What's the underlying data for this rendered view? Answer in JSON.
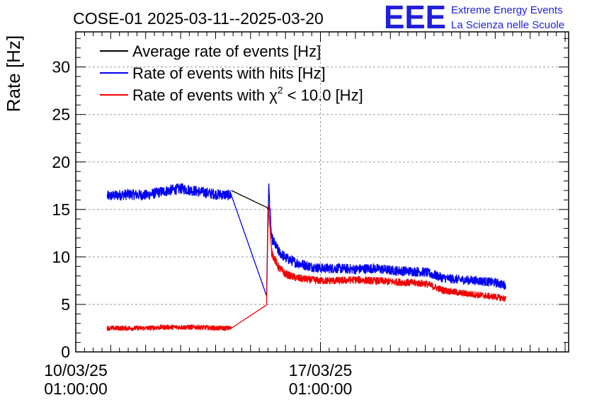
{
  "chart_data": {
    "type": "line",
    "title": "COSE-01 2025-03-11--2025-03-20",
    "ylabel": "Rate [Hz]",
    "xlabel": "",
    "x_unit": "days since 10/03/25 01:00:00",
    "xlim": [
      0,
      14.1
    ],
    "ylim": [
      0,
      33.7
    ],
    "y_ticks": [
      0,
      5,
      10,
      15,
      20,
      25,
      30
    ],
    "x_ticks": [
      {
        "x": 0,
        "date": "10/03/25",
        "time": "01:00:00"
      },
      {
        "x": 7,
        "date": "17/03/25",
        "time": "01:00:00"
      }
    ],
    "grid": true,
    "legend_position": "top-left",
    "series": [
      {
        "name": "Average rate of events [Hz]",
        "legend_main": "Average rate of events [Hz]",
        "color": "#000000",
        "x": [
          4.45,
          5.47,
          5.5
        ],
        "y": [
          17.0,
          15.2,
          15.0
        ]
      },
      {
        "name": "Rate of events with hits [Hz]",
        "legend_main": "Rate of events with hits [Hz]",
        "color": "#0000ee",
        "x": [
          0.9,
          1.5,
          2.0,
          2.5,
          3.0,
          3.5,
          4.0,
          4.45,
          5.46,
          5.49,
          5.52,
          5.6,
          5.8,
          6.0,
          6.3,
          6.7,
          7.0,
          7.5,
          8.0,
          8.5,
          9.0,
          9.5,
          10.0,
          10.5,
          11.0,
          11.5,
          12.0,
          12.3
        ],
        "y": [
          16.4,
          16.6,
          16.5,
          16.9,
          17.2,
          16.9,
          16.6,
          16.5,
          5.8,
          13.0,
          17.5,
          12.0,
          10.6,
          9.9,
          9.4,
          9.0,
          8.8,
          8.8,
          8.7,
          8.8,
          8.6,
          8.5,
          8.4,
          7.8,
          7.6,
          7.5,
          7.3,
          7.0
        ],
        "noise": 0.55
      },
      {
        "name": "Rate of events with χ2 < 10.0 [Hz]",
        "legend_main": "Rate of events with χ",
        "legend_sup": "2",
        "legend_tail": " < 10.0 [Hz]",
        "color": "#ee0000",
        "x": [
          0.9,
          1.5,
          2.0,
          2.5,
          3.0,
          3.5,
          4.0,
          4.45,
          5.46,
          5.49,
          5.52,
          5.6,
          5.8,
          6.0,
          6.3,
          6.7,
          7.0,
          7.5,
          8.0,
          8.5,
          9.0,
          9.5,
          10.0,
          10.5,
          11.0,
          11.5,
          12.0,
          12.3
        ],
        "y": [
          2.5,
          2.5,
          2.5,
          2.6,
          2.6,
          2.6,
          2.5,
          2.5,
          5.0,
          12.0,
          15.5,
          10.5,
          8.9,
          8.2,
          7.8,
          7.6,
          7.5,
          7.5,
          7.6,
          7.5,
          7.4,
          7.3,
          7.2,
          6.5,
          6.2,
          6.0,
          5.8,
          5.6
        ],
        "noise": 0.45
      }
    ]
  },
  "logo": {
    "mark": "EEE",
    "line1": "Extreme Energy Events",
    "line2": "La Scienza nelle Scuole",
    "color": "#1f1fdc"
  }
}
